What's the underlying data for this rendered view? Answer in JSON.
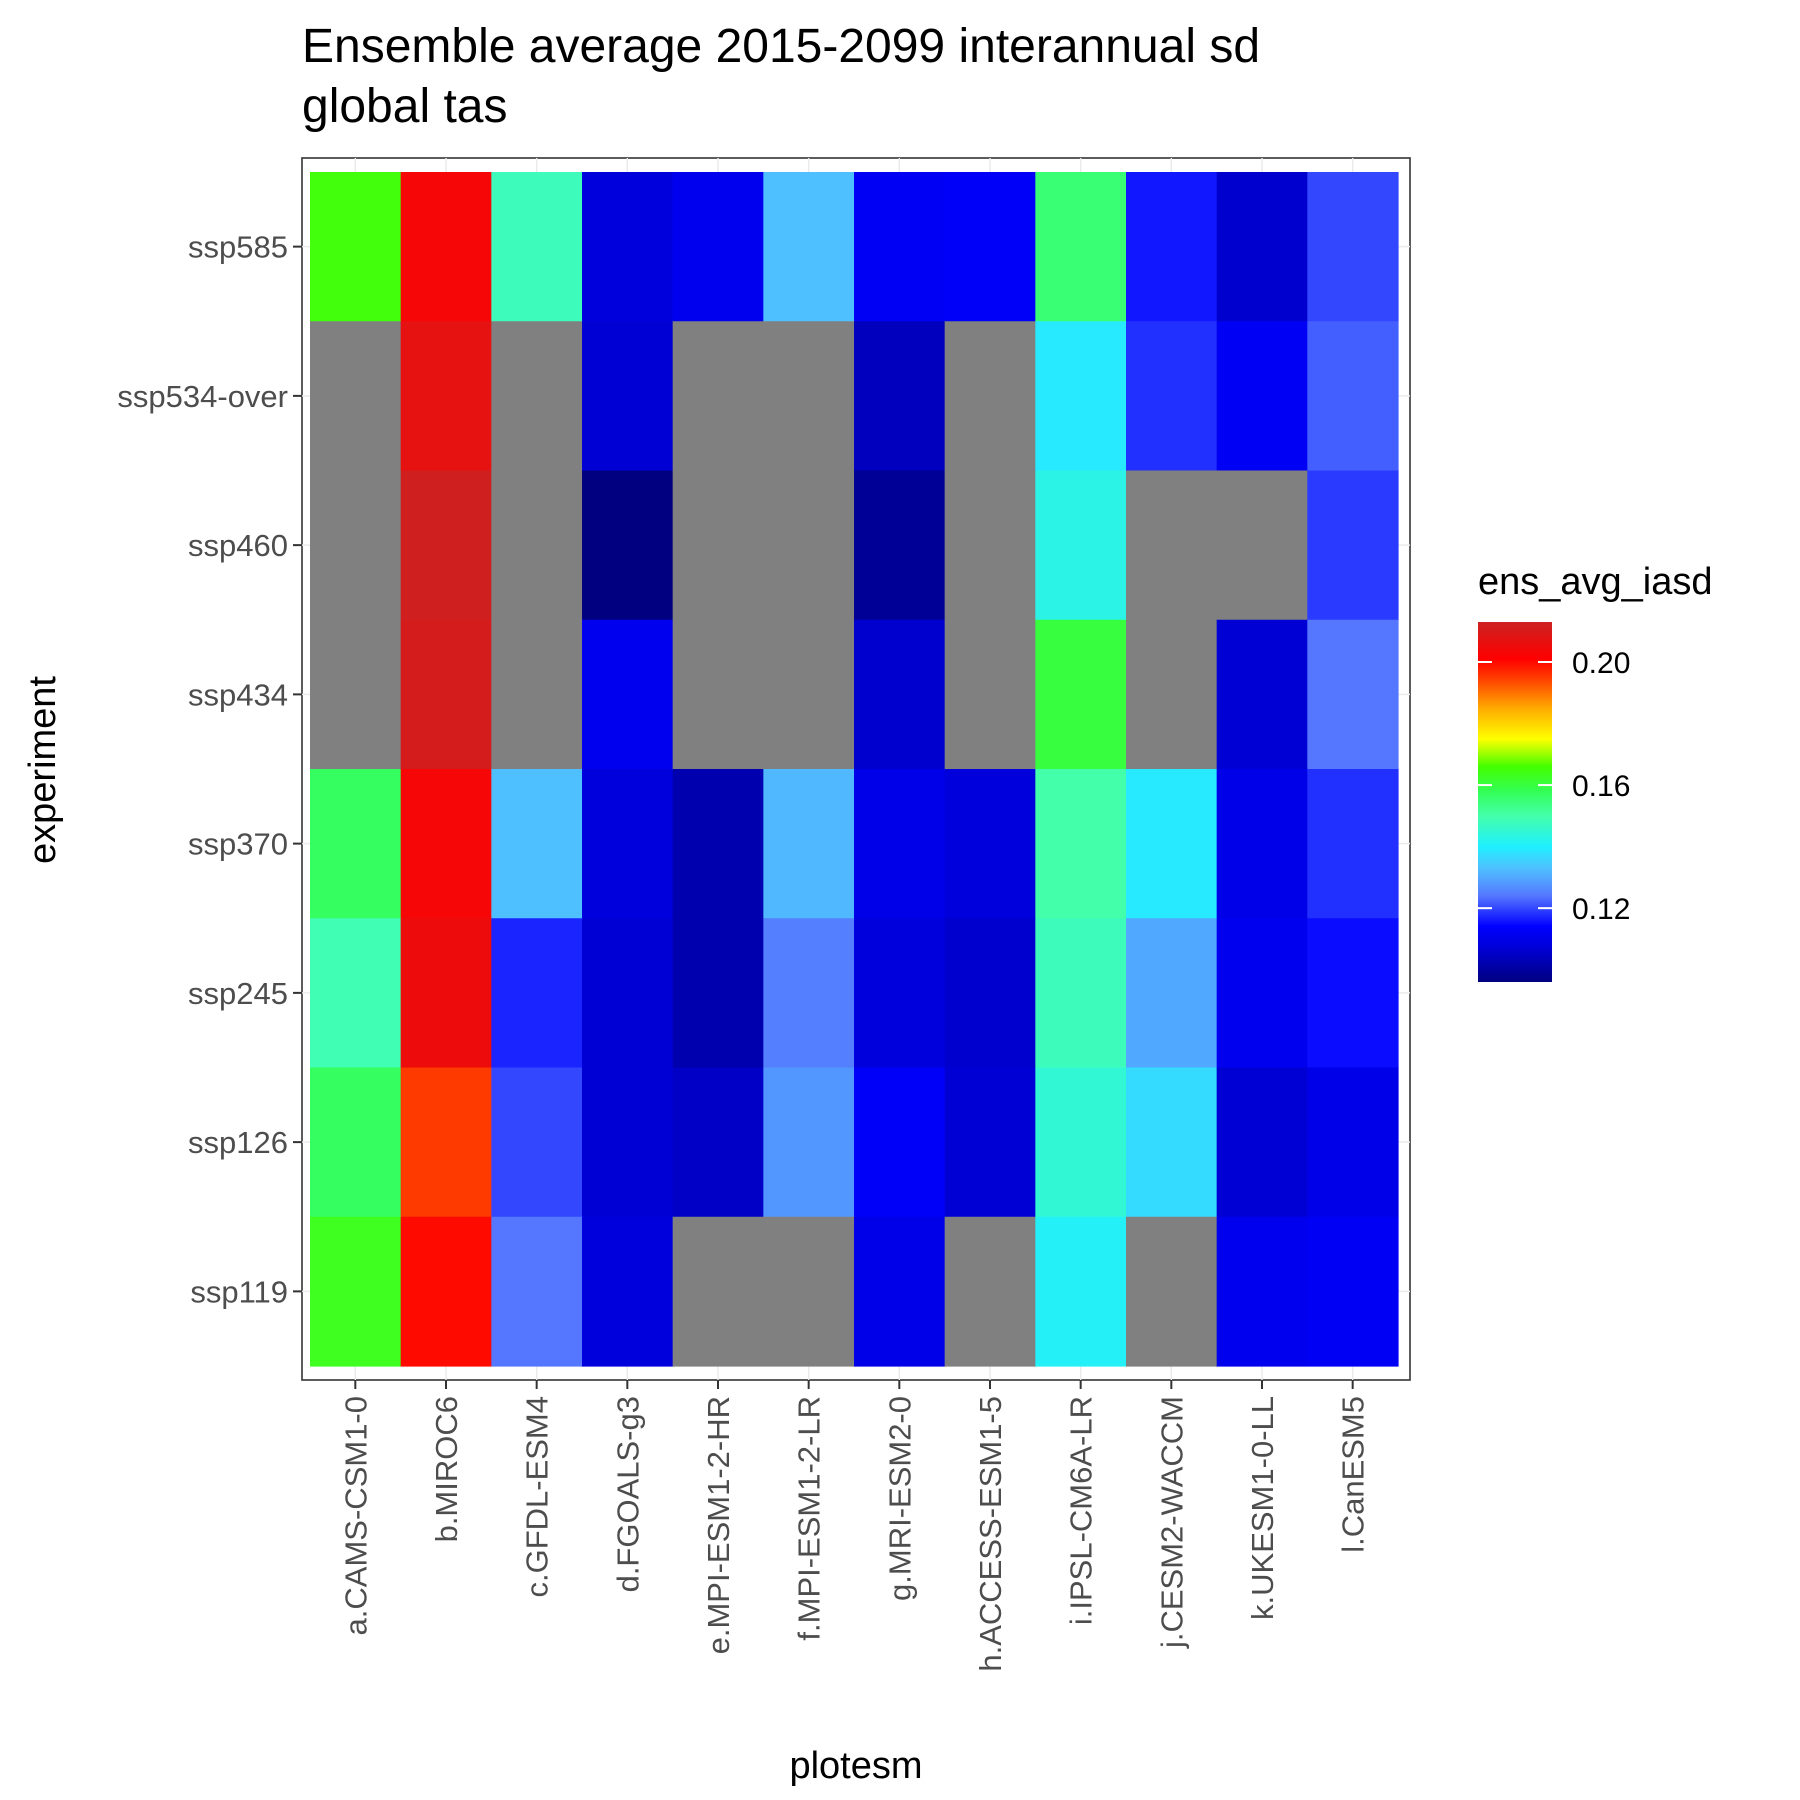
{
  "chart_data": {
    "type": "heatmap",
    "title_lines": [
      "Ensemble average 2015-2099 interannual sd",
      "global tas"
    ],
    "xlabel": "plotesm",
    "ylabel": "experiment",
    "x": [
      "a.CAMS-CSM1-0",
      "b.MIROC6",
      "c.GFDL-ESM4",
      "d.FGOALS-g3",
      "e.MPI-ESM1-2-HR",
      "f.MPI-ESM1-2-LR",
      "g.MRI-ESM2-0",
      "h.ACCESS-ESM1-5",
      "i.IPSL-CM6A-LR",
      "j.CESM2-WACCM",
      "k.UKESM1-0-LL",
      "l.CanESM5"
    ],
    "y": [
      "ssp585",
      "ssp534-over",
      "ssp460",
      "ssp434",
      "ssp370",
      "ssp245",
      "ssp126",
      "ssp119"
    ],
    "values": [
      [
        0.165,
        0.203,
        0.148,
        0.108,
        0.111,
        0.133,
        0.112,
        0.113,
        0.155,
        0.116,
        0.106,
        0.12
      ],
      [
        null,
        0.207,
        null,
        0.107,
        null,
        null,
        0.104,
        null,
        0.139,
        0.118,
        0.112,
        0.122
      ],
      [
        null,
        0.212,
        null,
        0.096,
        null,
        null,
        0.099,
        null,
        0.143,
        null,
        null,
        0.119
      ],
      [
        null,
        0.211,
        null,
        0.111,
        null,
        null,
        0.106,
        null,
        0.16,
        null,
        0.107,
        0.124
      ],
      [
        0.157,
        0.203,
        0.133,
        0.108,
        0.102,
        0.132,
        0.11,
        0.108,
        0.15,
        0.139,
        0.11,
        0.118
      ],
      [
        0.149,
        0.205,
        0.117,
        0.107,
        0.102,
        0.125,
        0.108,
        0.106,
        0.148,
        0.13,
        0.111,
        0.115
      ],
      [
        0.157,
        0.195,
        0.12,
        0.107,
        0.105,
        0.128,
        0.113,
        0.107,
        0.145,
        0.137,
        0.107,
        0.11
      ],
      [
        0.163,
        0.2,
        0.124,
        0.108,
        null,
        null,
        0.11,
        null,
        0.141,
        null,
        0.111,
        0.112
      ]
    ],
    "missing_color": "#808080",
    "colorscale": [
      {
        "value": 0.096,
        "color": "#000080"
      },
      {
        "value": 0.108,
        "color": "#0000dd"
      },
      {
        "value": 0.114,
        "color": "#0000ff"
      },
      {
        "value": 0.124,
        "color": "#5577ff"
      },
      {
        "value": 0.133,
        "color": "#4fc0ff"
      },
      {
        "value": 0.14,
        "color": "#20f0ff"
      },
      {
        "value": 0.15,
        "color": "#44ffaa"
      },
      {
        "value": 0.158,
        "color": "#33ff55"
      },
      {
        "value": 0.166,
        "color": "#44ff00"
      },
      {
        "value": 0.175,
        "color": "#ffff00"
      },
      {
        "value": 0.185,
        "color": "#ffaa00"
      },
      {
        "value": 0.195,
        "color": "#ff3a00"
      },
      {
        "value": 0.201,
        "color": "#ff0000"
      },
      {
        "value": 0.213,
        "color": "#cc2222"
      }
    ],
    "legend": {
      "title": "ens_avg_iasd",
      "min": 0.096,
      "max": 0.213,
      "ticks": [
        0.12,
        0.16,
        0.2
      ],
      "tick_labels": [
        "0.12",
        "0.16",
        "0.20"
      ],
      "position": "right"
    },
    "grid": true
  }
}
